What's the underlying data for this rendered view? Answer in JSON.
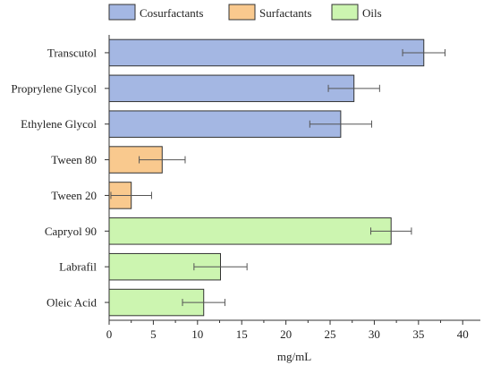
{
  "chart_data": {
    "type": "bar",
    "orientation": "horizontal",
    "categories": [
      "Transcutol",
      "Proprylene Glycol",
      "Ethylene Glycol",
      "Tween 80",
      "Tween 20",
      "Capryol 90",
      "Labrafil",
      "Oleic Acid"
    ],
    "values": [
      35.6,
      27.7,
      26.2,
      6.0,
      2.5,
      31.9,
      12.6,
      10.7
    ],
    "errors": [
      2.4,
      2.9,
      3.5,
      2.6,
      2.3,
      2.3,
      3.0,
      2.4
    ],
    "groups": [
      "Cosurfactants",
      "Cosurfactants",
      "Cosurfactants",
      "Surfactants",
      "Surfactants",
      "Oils",
      "Oils",
      "Oils"
    ],
    "legend": [
      {
        "name": "Cosurfactants",
        "color": "#a4b7e3"
      },
      {
        "name": "Surfactants",
        "color": "#f9c98e"
      },
      {
        "name": "Oils",
        "color": "#ccf5b0"
      }
    ],
    "legend_position": "top",
    "xlabel": "mg/mL",
    "ylabel": "",
    "title": "",
    "xlim": [
      0,
      42
    ],
    "xticks": [
      0,
      5,
      10,
      15,
      20,
      25,
      30,
      35,
      40
    ],
    "grid": false
  }
}
